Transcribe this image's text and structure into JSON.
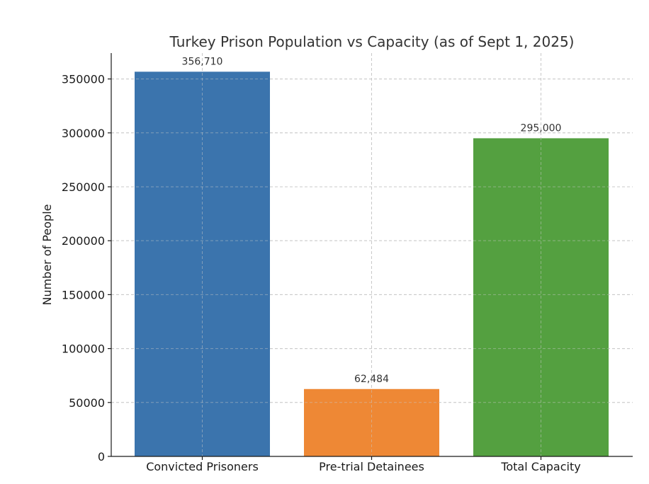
{
  "chart_data": {
    "type": "bar",
    "title": "Turkey Prison Population vs Capacity (as of Sept 1, 2025)",
    "xlabel": "",
    "ylabel": "Number of People",
    "categories": [
      "Convicted Prisoners",
      "Pre-trial Detainees",
      "Total Capacity"
    ],
    "values": [
      356710,
      62484,
      295000
    ],
    "value_labels": [
      "356,710",
      "62,484",
      "295,000"
    ],
    "colors": [
      "#3b74ad",
      "#ee8835",
      "#54a040"
    ],
    "ylim": [
      0,
      374000
    ],
    "yticks": [
      0,
      50000,
      100000,
      150000,
      200000,
      250000,
      300000,
      350000
    ],
    "ytick_labels": [
      "0",
      "50000",
      "100000",
      "150000",
      "200000",
      "250000",
      "300000",
      "350000"
    ],
    "grid": true
  }
}
